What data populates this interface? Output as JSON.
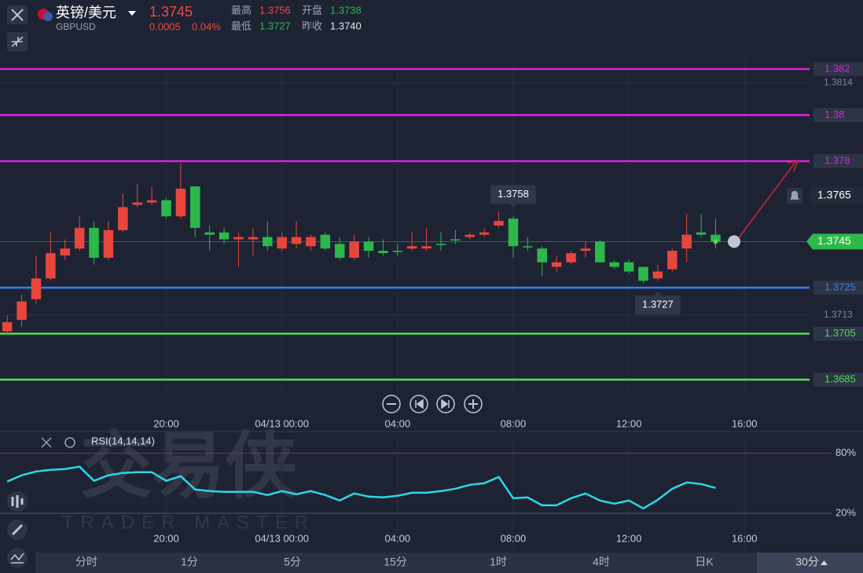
{
  "header": {
    "name": "英镑/美元",
    "symbol": "GBPUSD",
    "price": "1.3745",
    "change": "0.0005",
    "change_pct": "0.04%",
    "stats": [
      {
        "label": "最高",
        "value": "1.3756"
      },
      {
        "label": "开盘",
        "value": "1.3738"
      },
      {
        "label": "最低",
        "value": "1.3727"
      },
      {
        "label": "昨收",
        "value": "1.3740"
      }
    ]
  },
  "watermark": {
    "cn": "交易侠",
    "en": "TRADER MASTER"
  },
  "chart_data": {
    "type": "candlestick",
    "up_color": "#e8463c",
    "down_color": "#2db84a",
    "ylim": [
      1.36792,
      1.38244
    ],
    "yticks": [
      1.3814,
      1.3713
    ],
    "xlim": [
      -0.5,
      55.5
    ],
    "xticks": [
      {
        "value": 11,
        "label": "20:00"
      },
      {
        "value": 19,
        "label": "04/13 00:00"
      },
      {
        "value": 27,
        "label": "04:00"
      },
      {
        "value": 35,
        "label": "08:00"
      },
      {
        "value": 43,
        "label": "12:00"
      },
      {
        "value": 51,
        "label": "16:00"
      }
    ],
    "levels": [
      {
        "value": 1.382,
        "color": "#e020e0"
      },
      {
        "value": 1.38,
        "color": "#e020e0"
      },
      {
        "value": 1.378,
        "color": "#e020e0"
      },
      {
        "value": 1.3725,
        "color": "#3d7ef0"
      },
      {
        "value": 1.3705,
        "color": "#4ee04e"
      },
      {
        "value": 1.3685,
        "color": "#4ee04e"
      }
    ],
    "alert": 1.3765,
    "current_price": 1.3745,
    "annotations": [
      {
        "text": "1.3758",
        "index": 35,
        "value": 1.3758
      },
      {
        "text": "1.3727",
        "index": 45,
        "value": 1.3727
      }
    ],
    "candles": [
      {
        "open": 1.3706,
        "high": 1.3713,
        "low": 1.3705,
        "close": 1.371
      },
      {
        "open": 1.3711,
        "high": 1.3722,
        "low": 1.3708,
        "close": 1.3719
      },
      {
        "open": 1.372,
        "high": 1.3739,
        "low": 1.3718,
        "close": 1.3729
      },
      {
        "open": 1.3729,
        "high": 1.3749,
        "low": 1.3728,
        "close": 1.374
      },
      {
        "open": 1.3739,
        "high": 1.3746,
        "low": 1.3737,
        "close": 1.3742
      },
      {
        "open": 1.3742,
        "high": 1.3756,
        "low": 1.3741,
        "close": 1.3751
      },
      {
        "open": 1.3751,
        "high": 1.3754,
        "low": 1.3735,
        "close": 1.3738
      },
      {
        "open": 1.3738,
        "high": 1.3754,
        "low": 1.3737,
        "close": 1.375
      },
      {
        "open": 1.375,
        "high": 1.3766,
        "low": 1.3749,
        "close": 1.376
      },
      {
        "open": 1.3761,
        "high": 1.377,
        "low": 1.376,
        "close": 1.3762
      },
      {
        "open": 1.3762,
        "high": 1.3769,
        "low": 1.3761,
        "close": 1.3763
      },
      {
        "open": 1.3763,
        "high": 1.3764,
        "low": 1.3755,
        "close": 1.3756
      },
      {
        "open": 1.3756,
        "high": 1.3779,
        "low": 1.3755,
        "close": 1.3768
      },
      {
        "open": 1.3769,
        "high": 1.3769,
        "low": 1.3747,
        "close": 1.3751
      },
      {
        "open": 1.3749,
        "high": 1.3752,
        "low": 1.3741,
        "close": 1.3748
      },
      {
        "open": 1.3749,
        "high": 1.3751,
        "low": 1.3744,
        "close": 1.3746
      },
      {
        "open": 1.3746,
        "high": 1.3749,
        "low": 1.3734,
        "close": 1.3747
      },
      {
        "open": 1.3746,
        "high": 1.3751,
        "low": 1.3739,
        "close": 1.3747
      },
      {
        "open": 1.3747,
        "high": 1.3754,
        "low": 1.3741,
        "close": 1.3743
      },
      {
        "open": 1.3742,
        "high": 1.3749,
        "low": 1.3741,
        "close": 1.3747
      },
      {
        "open": 1.3744,
        "high": 1.3754,
        "low": 1.3742,
        "close": 1.3747
      },
      {
        "open": 1.3743,
        "high": 1.3748,
        "low": 1.3741,
        "close": 1.3747
      },
      {
        "open": 1.3748,
        "high": 1.3749,
        "low": 1.3741,
        "close": 1.3742
      },
      {
        "open": 1.3744,
        "high": 1.3747,
        "low": 1.3737,
        "close": 1.3738
      },
      {
        "open": 1.3738,
        "high": 1.3748,
        "low": 1.3737,
        "close": 1.3745
      },
      {
        "open": 1.3745,
        "high": 1.3747,
        "low": 1.3738,
        "close": 1.3741
      },
      {
        "open": 1.3741,
        "high": 1.3746,
        "low": 1.3739,
        "close": 1.374
      },
      {
        "open": 1.3741,
        "high": 1.3744,
        "low": 1.3739,
        "close": 1.3741
      },
      {
        "open": 1.3742,
        "high": 1.3749,
        "low": 1.3741,
        "close": 1.3743
      },
      {
        "open": 1.3742,
        "high": 1.3751,
        "low": 1.3741,
        "close": 1.3743
      },
      {
        "open": 1.3744,
        "high": 1.3749,
        "low": 1.3741,
        "close": 1.3744
      },
      {
        "open": 1.3746,
        "high": 1.375,
        "low": 1.3744,
        "close": 1.3746
      },
      {
        "open": 1.3747,
        "high": 1.3749,
        "low": 1.3746,
        "close": 1.3748
      },
      {
        "open": 1.3748,
        "high": 1.3751,
        "low": 1.3747,
        "close": 1.3749
      },
      {
        "open": 1.3752,
        "high": 1.3758,
        "low": 1.3751,
        "close": 1.3754
      },
      {
        "open": 1.3755,
        "high": 1.3756,
        "low": 1.3738,
        "close": 1.3743
      },
      {
        "open": 1.3743,
        "high": 1.3747,
        "low": 1.3741,
        "close": 1.3743
      },
      {
        "open": 1.3742,
        "high": 1.3743,
        "low": 1.373,
        "close": 1.3736
      },
      {
        "open": 1.3734,
        "high": 1.3739,
        "low": 1.3732,
        "close": 1.3736
      },
      {
        "open": 1.3736,
        "high": 1.3741,
        "low": 1.3735,
        "close": 1.374
      },
      {
        "open": 1.3741,
        "high": 1.3745,
        "low": 1.3738,
        "close": 1.3742
      },
      {
        "open": 1.3745,
        "high": 1.3746,
        "low": 1.3736,
        "close": 1.3736
      },
      {
        "open": 1.3736,
        "high": 1.3737,
        "low": 1.3733,
        "close": 1.3734
      },
      {
        "open": 1.3736,
        "high": 1.3737,
        "low": 1.3731,
        "close": 1.3732
      },
      {
        "open": 1.3734,
        "high": 1.3734,
        "low": 1.3727,
        "close": 1.3728
      },
      {
        "open": 1.3729,
        "high": 1.3735,
        "low": 1.3728,
        "close": 1.3732
      },
      {
        "open": 1.3733,
        "high": 1.3742,
        "low": 1.3732,
        "close": 1.3741
      },
      {
        "open": 1.3742,
        "high": 1.3757,
        "low": 1.3736,
        "close": 1.3748
      },
      {
        "open": 1.3749,
        "high": 1.3757,
        "low": 1.3747,
        "close": 1.3748
      },
      {
        "open": 1.3748,
        "high": 1.3755,
        "low": 1.3742,
        "close": 1.3745
      }
    ],
    "rsi": {
      "label": "RSI(14,14,14)",
      "color": "#2fd6e8",
      "ylim": [
        -17,
        97
      ],
      "yticks": [
        {
          "value": 80,
          "label": "80%"
        },
        {
          "value": 20,
          "label": "20%"
        }
      ],
      "values": [
        51.6,
        57.9,
        61.8,
        63.4,
        64.2,
        66.6,
        52.4,
        57.9,
        60.3,
        61.1,
        61.1,
        52.4,
        57.1,
        43.7,
        42.1,
        41.3,
        41.3,
        41.3,
        38.2,
        42.1,
        39.0,
        42.1,
        38.2,
        32.7,
        39.8,
        36.6,
        35.8,
        37.4,
        40.5,
        40.5,
        42.1,
        44.5,
        48.4,
        50.0,
        56.3,
        35.0,
        35.8,
        27.9,
        27.9,
        35.0,
        39.8,
        32.7,
        29.5,
        32.7,
        24.8,
        33.4,
        44.5,
        50.8,
        49.2,
        45.3
      ]
    }
  },
  "tabs": [
    "分时",
    "1分",
    "5分",
    "15分",
    "1时",
    "4时",
    "日K",
    "30分"
  ]
}
